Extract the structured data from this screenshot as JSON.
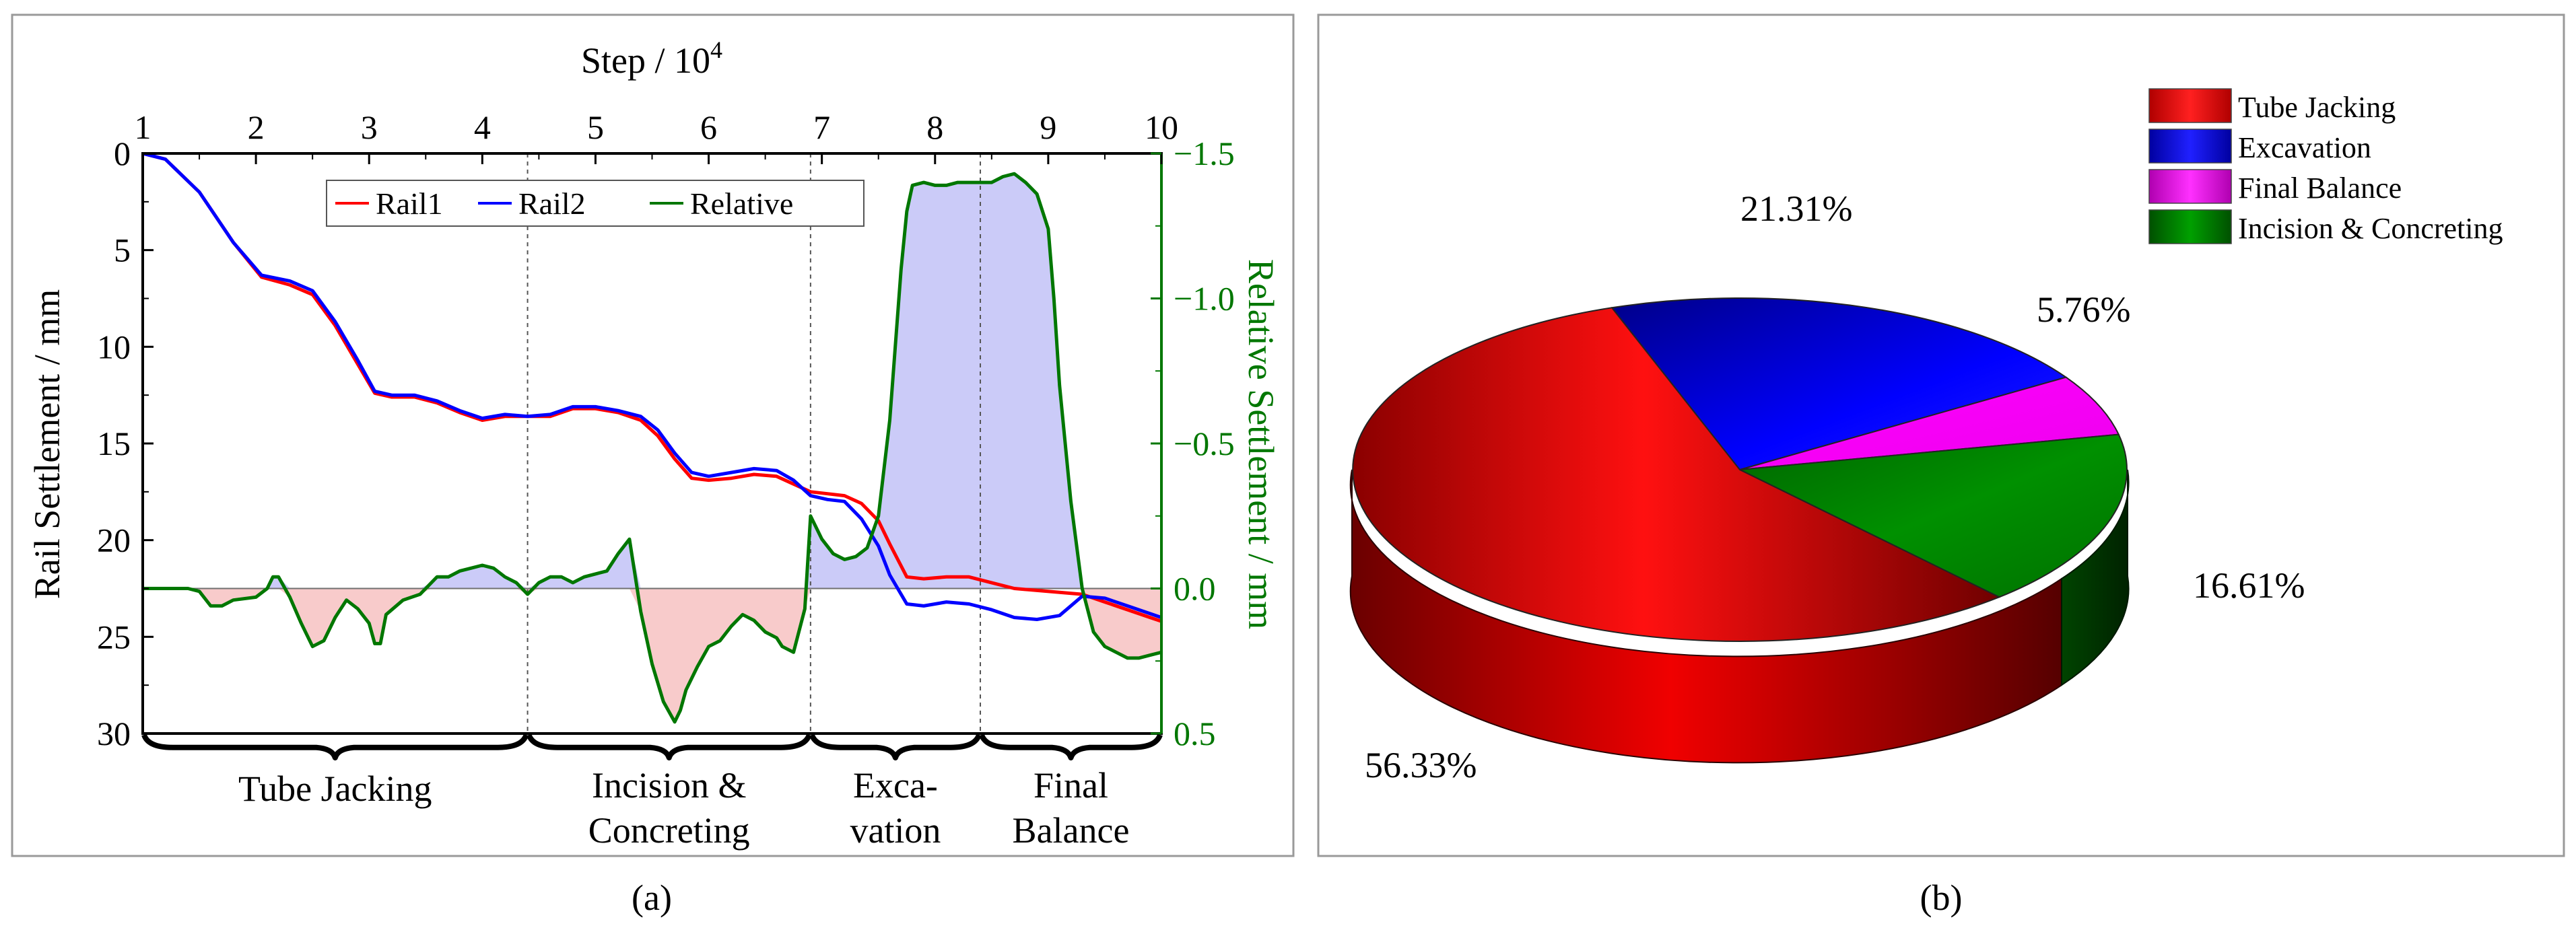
{
  "chart_data": [
    {
      "type": "line",
      "panel_label": "(a)",
      "top_axis_title": "Step / 10",
      "top_axis_exponent": "4",
      "x_ticks": [
        "1",
        "2",
        "3",
        "4",
        "5",
        "6",
        "7",
        "8",
        "9",
        "10"
      ],
      "xlim": [
        1,
        10
      ],
      "ylabel": "Rail Settlement / mm",
      "ylim": [
        0,
        30
      ],
      "y_ticks": [
        "0",
        "5",
        "10",
        "15",
        "20",
        "25",
        "30"
      ],
      "y2label": "Relative Settlement / mm",
      "y2lim": [
        -1.5,
        0.5
      ],
      "y2_ticks": [
        "−1.5",
        "−1.0",
        "−0.5",
        "0.0",
        "0.5"
      ],
      "y2_tick_values": [
        -1.5,
        -1.0,
        -0.5,
        0.0,
        0.5
      ],
      "legend": [
        "Rail1",
        "Rail2",
        "Relative"
      ],
      "legend_placement": "top-center",
      "colors": {
        "Rail1": "#ff0000",
        "Rail2": "#0000ff",
        "Relative": "#007700",
        "fill_negative": "#c8c8f8",
        "fill_positive": "#f8c8c8",
        "axis_right": "#007700"
      },
      "phase_boundaries": [
        4.4,
        6.9,
        8.4
      ],
      "phases": [
        {
          "line1": "Tube Jacking",
          "line2": "",
          "x_start": 1.0,
          "x_end": 4.4
        },
        {
          "line1": "Incision &",
          "line2": "Concreting",
          "x_start": 4.4,
          "x_end": 6.9
        },
        {
          "line1": "Exca-",
          "line2": "vation",
          "x_start": 6.9,
          "x_end": 8.4
        },
        {
          "line1": "Final",
          "line2": "Balance",
          "x_start": 8.4,
          "x_end": 10.0
        }
      ],
      "series": [
        {
          "name": "Rail1",
          "x": [
            1.0,
            1.2,
            1.5,
            1.8,
            2.05,
            2.3,
            2.5,
            2.7,
            2.9,
            3.05,
            3.2,
            3.4,
            3.6,
            3.8,
            4.0,
            4.2,
            4.4,
            4.6,
            4.8,
            5.0,
            5.2,
            5.4,
            5.55,
            5.7,
            5.85,
            6.0,
            6.2,
            6.4,
            6.6,
            6.75,
            6.9,
            7.05,
            7.2,
            7.35,
            7.5,
            7.6,
            7.75,
            7.9,
            8.1,
            8.3,
            8.5,
            8.7,
            8.9,
            9.1,
            9.3,
            9.5,
            9.7,
            9.9,
            10.0
          ],
          "values": [
            0.0,
            0.3,
            2.0,
            4.6,
            6.4,
            6.8,
            7.3,
            8.9,
            10.9,
            12.4,
            12.6,
            12.6,
            12.9,
            13.4,
            13.8,
            13.6,
            13.6,
            13.6,
            13.2,
            13.2,
            13.4,
            13.8,
            14.6,
            15.8,
            16.8,
            16.9,
            16.8,
            16.6,
            16.7,
            17.1,
            17.5,
            17.6,
            17.7,
            18.1,
            19.0,
            20.2,
            21.9,
            22.0,
            21.9,
            21.9,
            22.2,
            22.5,
            22.6,
            22.7,
            22.8,
            23.2,
            23.6,
            24.0,
            24.2
          ]
        },
        {
          "name": "Rail2",
          "x": [
            1.0,
            1.2,
            1.5,
            1.8,
            2.05,
            2.3,
            2.5,
            2.7,
            2.9,
            3.05,
            3.2,
            3.4,
            3.6,
            3.8,
            4.0,
            4.2,
            4.4,
            4.6,
            4.8,
            5.0,
            5.2,
            5.4,
            5.55,
            5.7,
            5.85,
            6.0,
            6.2,
            6.4,
            6.6,
            6.75,
            6.9,
            7.05,
            7.2,
            7.35,
            7.5,
            7.6,
            7.75,
            7.9,
            8.1,
            8.3,
            8.5,
            8.7,
            8.9,
            9.1,
            9.3,
            9.5,
            9.7,
            9.9,
            10.0
          ],
          "values": [
            0.0,
            0.3,
            2.0,
            4.6,
            6.3,
            6.6,
            7.1,
            8.7,
            10.7,
            12.3,
            12.5,
            12.5,
            12.8,
            13.3,
            13.7,
            13.5,
            13.6,
            13.5,
            13.1,
            13.1,
            13.3,
            13.6,
            14.3,
            15.5,
            16.5,
            16.7,
            16.5,
            16.3,
            16.4,
            16.9,
            17.7,
            17.9,
            18.0,
            18.9,
            20.3,
            21.8,
            23.3,
            23.4,
            23.2,
            23.3,
            23.6,
            24.0,
            24.1,
            23.9,
            22.9,
            23.0,
            23.4,
            23.8,
            24.0
          ]
        },
        {
          "name": "Relative",
          "axis": "right",
          "x": [
            1.0,
            1.4,
            1.5,
            1.6,
            1.7,
            1.8,
            2.0,
            2.1,
            2.15,
            2.2,
            2.3,
            2.4,
            2.5,
            2.6,
            2.7,
            2.8,
            2.9,
            3.0,
            3.05,
            3.1,
            3.15,
            3.3,
            3.45,
            3.55,
            3.6,
            3.7,
            3.8,
            3.9,
            4.0,
            4.1,
            4.2,
            4.3,
            4.4,
            4.5,
            4.6,
            4.7,
            4.8,
            4.9,
            5.0,
            5.1,
            5.2,
            5.3,
            5.4,
            5.5,
            5.6,
            5.7,
            5.75,
            5.8,
            5.9,
            6.0,
            6.1,
            6.2,
            6.3,
            6.4,
            6.5,
            6.6,
            6.65,
            6.75,
            6.85,
            6.9,
            7.0,
            7.1,
            7.2,
            7.3,
            7.4,
            7.5,
            7.6,
            7.7,
            7.75,
            7.8,
            7.9,
            8.0,
            8.1,
            8.2,
            8.3,
            8.4,
            8.5,
            8.6,
            8.7,
            8.8,
            8.9,
            9.0,
            9.05,
            9.1,
            9.2,
            9.3,
            9.4,
            9.5,
            9.6,
            9.7,
            9.8,
            9.9,
            10.0
          ],
          "values": [
            0.0,
            0.0,
            0.01,
            0.06,
            0.06,
            0.04,
            0.03,
            0.0,
            -0.04,
            -0.04,
            0.03,
            0.12,
            0.2,
            0.18,
            0.1,
            0.04,
            0.07,
            0.12,
            0.19,
            0.19,
            0.09,
            0.04,
            0.02,
            -0.02,
            -0.04,
            -0.04,
            -0.06,
            -0.07,
            -0.08,
            -0.07,
            -0.04,
            -0.02,
            0.02,
            -0.02,
            -0.04,
            -0.04,
            -0.02,
            -0.04,
            -0.05,
            -0.06,
            -0.12,
            -0.17,
            0.08,
            0.26,
            0.39,
            0.46,
            0.42,
            0.35,
            0.27,
            0.2,
            0.18,
            0.13,
            0.09,
            0.11,
            0.15,
            0.17,
            0.2,
            0.22,
            0.07,
            -0.25,
            -0.17,
            -0.12,
            -0.1,
            -0.11,
            -0.14,
            -0.25,
            -0.58,
            -1.1,
            -1.3,
            -1.39,
            -1.4,
            -1.39,
            -1.39,
            -1.4,
            -1.4,
            -1.4,
            -1.4,
            -1.42,
            -1.43,
            -1.4,
            -1.36,
            -1.24,
            -1.0,
            -0.7,
            -0.3,
            0.0,
            0.15,
            0.2,
            0.22,
            0.24,
            0.24,
            0.23,
            0.22
          ]
        }
      ]
    },
    {
      "type": "pie",
      "panel_label": "(b)",
      "categories": [
        "Tube Jacking",
        "Excavation",
        "Final Balance",
        "Incision & Concreting"
      ],
      "values": [
        56.33,
        21.31,
        5.76,
        16.61
      ],
      "labels": [
        "56.33%",
        "21.31%",
        "5.76%",
        "16.61%"
      ],
      "colors": [
        "#ff0000",
        "#0000ee",
        "#ff00ff",
        "#008800"
      ],
      "legend_placement": "top-right",
      "style": "3d"
    }
  ]
}
